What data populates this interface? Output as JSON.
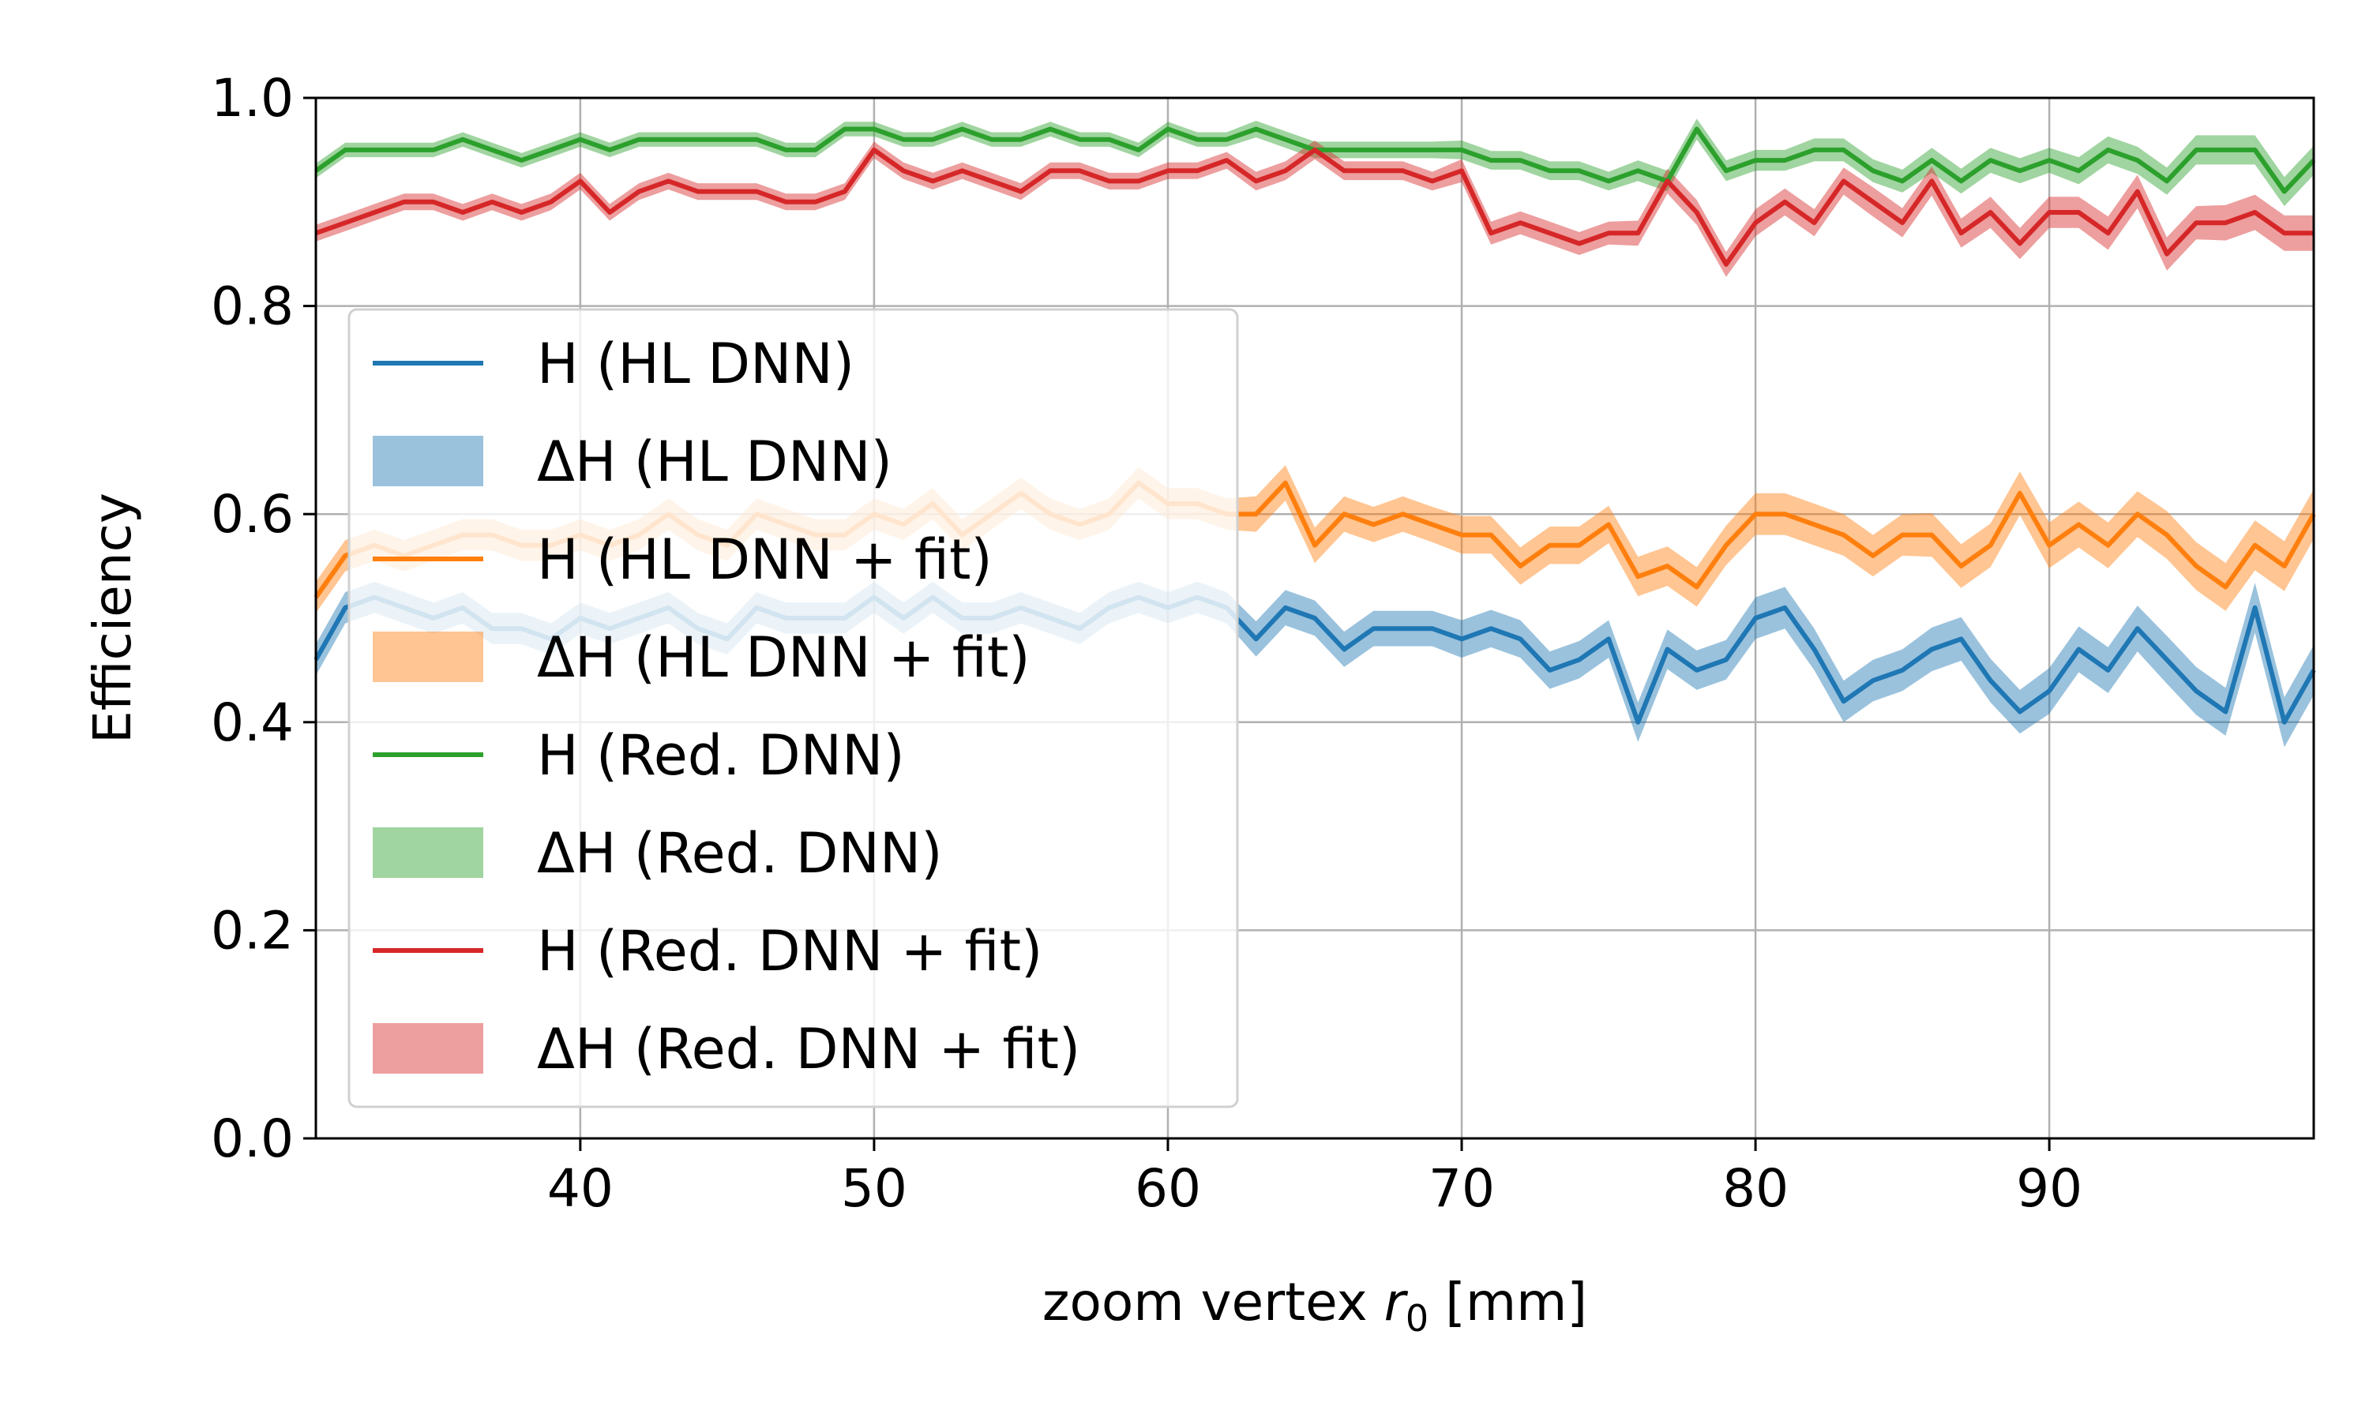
{
  "chart_data": {
    "type": "line",
    "title": "",
    "xlabel_prefix": "zoom vertex ",
    "xlabel_var": "r",
    "xlabel_sub": "0",
    "xlabel_suffix": " [mm]",
    "ylabel": "Efficiency",
    "xlim": [
      31,
      99
    ],
    "ylim": [
      0.0,
      1.0
    ],
    "xticks": [
      40,
      50,
      60,
      70,
      80,
      90
    ],
    "xtick_labels": [
      "40",
      "50",
      "60",
      "70",
      "80",
      "90"
    ],
    "yticks": [
      0.0,
      0.2,
      0.4,
      0.6,
      0.8,
      1.0
    ],
    "ytick_labels": [
      "0.0",
      "0.2",
      "0.4",
      "0.6",
      "0.8",
      "1.0"
    ],
    "grid": true,
    "legend_position": "upper-left",
    "x": [
      31,
      32,
      33,
      34,
      35,
      36,
      37,
      38,
      39,
      40,
      41,
      42,
      43,
      44,
      45,
      46,
      47,
      48,
      49,
      50,
      51,
      52,
      53,
      54,
      55,
      56,
      57,
      58,
      59,
      60,
      61,
      62,
      63,
      64,
      65,
      66,
      67,
      68,
      69,
      70,
      71,
      72,
      73,
      74,
      75,
      76,
      77,
      78,
      79,
      80,
      81,
      82,
      83,
      84,
      85,
      86,
      87,
      88,
      89,
      90,
      91,
      92,
      93,
      94,
      95,
      96,
      97,
      98,
      99
    ],
    "series": [
      {
        "name": "H (HL DNN)",
        "band_name": "ΔH (HL DNN)",
        "color": "#1f77b4",
        "band_color": "#1f77b4",
        "values": [
          0.46,
          0.51,
          0.52,
          0.51,
          0.5,
          0.51,
          0.49,
          0.49,
          0.48,
          0.5,
          0.49,
          0.5,
          0.51,
          0.49,
          0.48,
          0.51,
          0.5,
          0.5,
          0.5,
          0.52,
          0.5,
          0.52,
          0.5,
          0.5,
          0.51,
          0.5,
          0.49,
          0.51,
          0.52,
          0.51,
          0.52,
          0.51,
          0.48,
          0.51,
          0.5,
          0.47,
          0.49,
          0.49,
          0.49,
          0.48,
          0.49,
          0.48,
          0.45,
          0.46,
          0.48,
          0.4,
          0.47,
          0.45,
          0.46,
          0.5,
          0.51,
          0.47,
          0.42,
          0.44,
          0.45,
          0.47,
          0.48,
          0.44,
          0.41,
          0.43,
          0.47,
          0.45,
          0.49,
          0.46,
          0.43,
          0.41,
          0.51,
          0.4,
          0.45
        ],
        "band_halfwidth": [
          0.015,
          0.015,
          0.015,
          0.015,
          0.015,
          0.015,
          0.015,
          0.015,
          0.015,
          0.015,
          0.015,
          0.015,
          0.015,
          0.015,
          0.015,
          0.015,
          0.015,
          0.015,
          0.015,
          0.015,
          0.015,
          0.015,
          0.015,
          0.015,
          0.015,
          0.015,
          0.015,
          0.015,
          0.015,
          0.015,
          0.015,
          0.015,
          0.017,
          0.017,
          0.017,
          0.017,
          0.017,
          0.017,
          0.017,
          0.018,
          0.018,
          0.018,
          0.018,
          0.018,
          0.018,
          0.019,
          0.019,
          0.019,
          0.019,
          0.02,
          0.02,
          0.02,
          0.02,
          0.02,
          0.02,
          0.021,
          0.021,
          0.021,
          0.021,
          0.022,
          0.022,
          0.022,
          0.022,
          0.023,
          0.023,
          0.023,
          0.024,
          0.024,
          0.024
        ]
      },
      {
        "name": "H (HL DNN + fit)",
        "band_name": "ΔH (HL DNN + fit)",
        "color": "#ff7f0e",
        "band_color": "#ff7f0e",
        "values": [
          0.52,
          0.56,
          0.57,
          0.56,
          0.57,
          0.58,
          0.58,
          0.57,
          0.57,
          0.58,
          0.57,
          0.58,
          0.6,
          0.58,
          0.57,
          0.6,
          0.59,
          0.58,
          0.58,
          0.6,
          0.59,
          0.61,
          0.58,
          0.6,
          0.62,
          0.6,
          0.59,
          0.6,
          0.63,
          0.61,
          0.61,
          0.6,
          0.6,
          0.63,
          0.57,
          0.6,
          0.59,
          0.6,
          0.59,
          0.58,
          0.58,
          0.55,
          0.57,
          0.57,
          0.59,
          0.54,
          0.55,
          0.53,
          0.57,
          0.6,
          0.6,
          0.59,
          0.58,
          0.56,
          0.58,
          0.58,
          0.55,
          0.57,
          0.62,
          0.57,
          0.59,
          0.57,
          0.6,
          0.58,
          0.55,
          0.53,
          0.57,
          0.55,
          0.6
        ],
        "band_halfwidth": [
          0.015,
          0.015,
          0.015,
          0.015,
          0.015,
          0.015,
          0.015,
          0.015,
          0.015,
          0.015,
          0.015,
          0.015,
          0.015,
          0.015,
          0.015,
          0.015,
          0.015,
          0.015,
          0.015,
          0.015,
          0.015,
          0.015,
          0.015,
          0.015,
          0.015,
          0.015,
          0.015,
          0.015,
          0.015,
          0.015,
          0.015,
          0.015,
          0.017,
          0.017,
          0.017,
          0.017,
          0.017,
          0.017,
          0.017,
          0.018,
          0.018,
          0.018,
          0.018,
          0.018,
          0.018,
          0.019,
          0.019,
          0.019,
          0.019,
          0.02,
          0.02,
          0.02,
          0.02,
          0.02,
          0.02,
          0.021,
          0.021,
          0.021,
          0.021,
          0.022,
          0.022,
          0.022,
          0.022,
          0.023,
          0.023,
          0.023,
          0.024,
          0.024,
          0.024
        ]
      },
      {
        "name": "H (Red. DNN)",
        "band_name": "ΔH (Red. DNN)",
        "color": "#2ca02c",
        "band_color": "#2ca02c",
        "values": [
          0.93,
          0.95,
          0.95,
          0.95,
          0.95,
          0.96,
          0.95,
          0.94,
          0.95,
          0.96,
          0.95,
          0.96,
          0.96,
          0.96,
          0.96,
          0.96,
          0.95,
          0.95,
          0.97,
          0.97,
          0.96,
          0.96,
          0.97,
          0.96,
          0.96,
          0.97,
          0.96,
          0.96,
          0.95,
          0.97,
          0.96,
          0.96,
          0.97,
          0.96,
          0.95,
          0.95,
          0.95,
          0.95,
          0.95,
          0.95,
          0.94,
          0.94,
          0.93,
          0.93,
          0.92,
          0.93,
          0.92,
          0.97,
          0.93,
          0.94,
          0.94,
          0.95,
          0.95,
          0.93,
          0.92,
          0.94,
          0.92,
          0.94,
          0.93,
          0.94,
          0.93,
          0.95,
          0.94,
          0.92,
          0.95,
          0.95,
          0.95,
          0.91,
          0.94
        ],
        "band_halfwidth": [
          0.007,
          0.007,
          0.007,
          0.007,
          0.007,
          0.007,
          0.007,
          0.007,
          0.007,
          0.007,
          0.007,
          0.007,
          0.007,
          0.007,
          0.007,
          0.007,
          0.007,
          0.007,
          0.007,
          0.007,
          0.007,
          0.007,
          0.007,
          0.007,
          0.007,
          0.007,
          0.007,
          0.007,
          0.007,
          0.007,
          0.007,
          0.007,
          0.008,
          0.008,
          0.008,
          0.008,
          0.008,
          0.008,
          0.008,
          0.009,
          0.009,
          0.009,
          0.009,
          0.009,
          0.009,
          0.01,
          0.01,
          0.01,
          0.01,
          0.01,
          0.01,
          0.011,
          0.011,
          0.011,
          0.011,
          0.012,
          0.012,
          0.012,
          0.012,
          0.012,
          0.013,
          0.013,
          0.013,
          0.013,
          0.014,
          0.014,
          0.014,
          0.014,
          0.014
        ]
      },
      {
        "name": "H (Red. DNN + fit)",
        "band_name": "ΔH (Red. DNN + fit)",
        "color": "#d62728",
        "band_color": "#d62728",
        "values": [
          0.87,
          0.88,
          0.89,
          0.9,
          0.9,
          0.89,
          0.9,
          0.89,
          0.9,
          0.92,
          0.89,
          0.91,
          0.92,
          0.91,
          0.91,
          0.91,
          0.9,
          0.9,
          0.91,
          0.95,
          0.93,
          0.92,
          0.93,
          0.92,
          0.91,
          0.93,
          0.93,
          0.92,
          0.92,
          0.93,
          0.93,
          0.94,
          0.92,
          0.93,
          0.95,
          0.93,
          0.93,
          0.93,
          0.92,
          0.93,
          0.87,
          0.88,
          0.87,
          0.86,
          0.87,
          0.87,
          0.92,
          0.89,
          0.84,
          0.88,
          0.9,
          0.88,
          0.92,
          0.9,
          0.88,
          0.92,
          0.87,
          0.89,
          0.86,
          0.89,
          0.89,
          0.87,
          0.91,
          0.85,
          0.88,
          0.88,
          0.89,
          0.87,
          0.87
        ],
        "band_halfwidth": [
          0.008,
          0.008,
          0.008,
          0.008,
          0.008,
          0.008,
          0.008,
          0.008,
          0.008,
          0.008,
          0.008,
          0.008,
          0.008,
          0.008,
          0.008,
          0.008,
          0.008,
          0.008,
          0.008,
          0.008,
          0.008,
          0.008,
          0.008,
          0.008,
          0.008,
          0.008,
          0.008,
          0.008,
          0.008,
          0.008,
          0.008,
          0.008,
          0.009,
          0.009,
          0.009,
          0.009,
          0.009,
          0.009,
          0.009,
          0.011,
          0.011,
          0.011,
          0.011,
          0.011,
          0.011,
          0.012,
          0.012,
          0.012,
          0.012,
          0.013,
          0.013,
          0.013,
          0.013,
          0.014,
          0.014,
          0.014,
          0.014,
          0.015,
          0.015,
          0.015,
          0.015,
          0.016,
          0.016,
          0.016,
          0.016,
          0.017,
          0.017,
          0.017,
          0.017
        ]
      }
    ]
  }
}
